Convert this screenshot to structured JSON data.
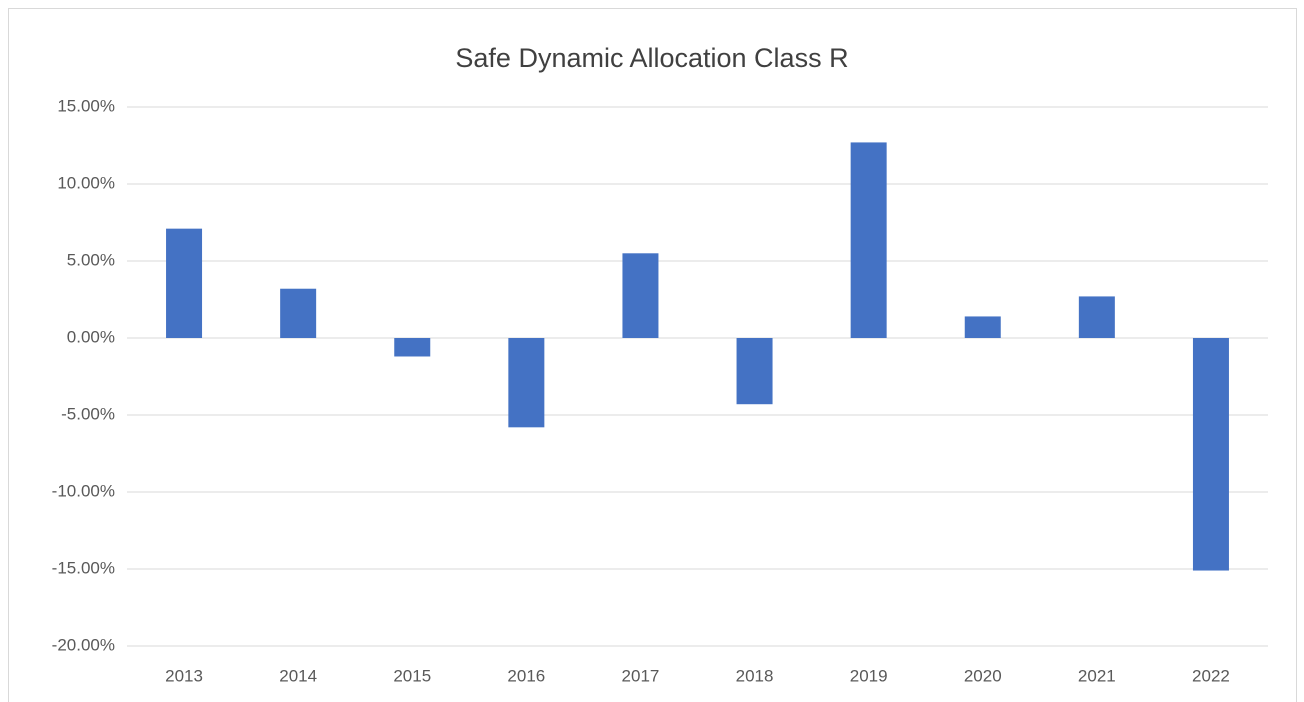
{
  "chart_data": {
    "type": "bar",
    "title": "Safe Dynamic Allocation Class R",
    "categories": [
      "2013",
      "2014",
      "2015",
      "2016",
      "2017",
      "2018",
      "2019",
      "2020",
      "2021",
      "2022"
    ],
    "values": [
      7.1,
      3.2,
      -1.2,
      -5.8,
      5.5,
      -4.3,
      12.7,
      1.4,
      2.7,
      -15.1
    ],
    "color": "#4472c4",
    "ylim": [
      -20,
      15
    ],
    "yticks": [
      {
        "value": 15,
        "label": "15.00%"
      },
      {
        "value": 10,
        "label": "10.00%"
      },
      {
        "value": 5,
        "label": "5.00%"
      },
      {
        "value": 0,
        "label": "0.00%"
      },
      {
        "value": -5,
        "label": "-5.00%"
      },
      {
        "value": -10,
        "label": "-10.00%"
      },
      {
        "value": -15,
        "label": "-15.00%"
      },
      {
        "value": -20,
        "label": "-20.00%"
      }
    ],
    "grid": true
  }
}
